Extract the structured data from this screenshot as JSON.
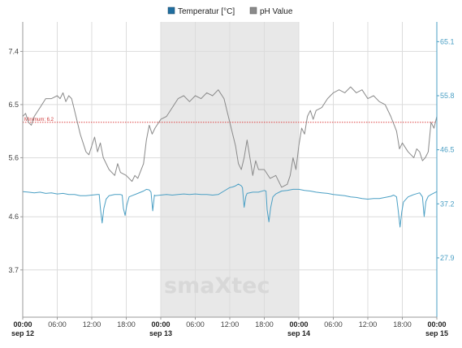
{
  "chart_data": {
    "type": "line",
    "legend": [
      {
        "name": "Temperatur [°C]",
        "color": "#1f6ea0"
      },
      {
        "name": "pH Value",
        "color": "#8a8a8a"
      }
    ],
    "legend_position": "top-center",
    "grid": true,
    "x_range": [
      "sep 12 00:00",
      "sep 15 00:00"
    ],
    "x_ticks": [
      "00:00",
      "06:00",
      "12:00",
      "18:00",
      "00:00",
      "06:00",
      "12:00",
      "18:00",
      "00:00",
      "06:00",
      "12:00",
      "18:00",
      "00:00"
    ],
    "x_day_labels": [
      {
        "hour": 0,
        "label": "sep 12"
      },
      {
        "hour": 24,
        "label": "sep 13"
      },
      {
        "hour": 48,
        "label": "sep 14"
      },
      {
        "hour": 72,
        "label": "sep 15"
      }
    ],
    "shaded_band": {
      "from_hour": 24,
      "to_hour": 48,
      "color": "#e8e8e8"
    },
    "y_left": {
      "ticks": [
        "7.4",
        "6.5",
        "5.6",
        "4.6",
        "3.7"
      ],
      "range": [
        2.9,
        7.9
      ]
    },
    "y_right": {
      "ticks": [
        "65.1",
        "55.8",
        "46.5",
        "37.2",
        "27.9"
      ],
      "range": [
        17.7,
        68.5
      ],
      "color": "#4a9fc4"
    },
    "threshold": {
      "label": "Minimum: 6.2",
      "value": 6.2,
      "color": "#cc3333"
    },
    "watermark": "smaXtec",
    "series": [
      {
        "name": "pH Value",
        "axis": "left",
        "color": "#8a8a8a",
        "points": [
          [
            0,
            6.3
          ],
          [
            0.5,
            6.35
          ],
          [
            1,
            6.2
          ],
          [
            1.5,
            6.15
          ],
          [
            2,
            6.3
          ],
          [
            3,
            6.45
          ],
          [
            4,
            6.6
          ],
          [
            5,
            6.6
          ],
          [
            6,
            6.65
          ],
          [
            6.5,
            6.6
          ],
          [
            7,
            6.7
          ],
          [
            7.5,
            6.55
          ],
          [
            8,
            6.65
          ],
          [
            8.5,
            6.6
          ],
          [
            9,
            6.4
          ],
          [
            10,
            6.0
          ],
          [
            11,
            5.7
          ],
          [
            11.5,
            5.65
          ],
          [
            12,
            5.8
          ],
          [
            12.5,
            5.95
          ],
          [
            13,
            5.7
          ],
          [
            13.5,
            5.85
          ],
          [
            14,
            5.6
          ],
          [
            15,
            5.4
          ],
          [
            16,
            5.3
          ],
          [
            16.5,
            5.5
          ],
          [
            17,
            5.35
          ],
          [
            18,
            5.3
          ],
          [
            19,
            5.2
          ],
          [
            19.5,
            5.3
          ],
          [
            20,
            5.25
          ],
          [
            21,
            5.5
          ],
          [
            21.5,
            5.9
          ],
          [
            22,
            6.15
          ],
          [
            22.5,
            6.0
          ],
          [
            23,
            6.1
          ],
          [
            24,
            6.25
          ],
          [
            25,
            6.3
          ],
          [
            26,
            6.45
          ],
          [
            27,
            6.6
          ],
          [
            28,
            6.65
          ],
          [
            29,
            6.55
          ],
          [
            30,
            6.65
          ],
          [
            31,
            6.6
          ],
          [
            32,
            6.7
          ],
          [
            33,
            6.65
          ],
          [
            34,
            6.75
          ],
          [
            35,
            6.6
          ],
          [
            36,
            6.2
          ],
          [
            37,
            5.8
          ],
          [
            37.5,
            5.5
          ],
          [
            38,
            5.4
          ],
          [
            38.5,
            5.6
          ],
          [
            39,
            5.9
          ],
          [
            39.5,
            5.6
          ],
          [
            40,
            5.3
          ],
          [
            40.5,
            5.55
          ],
          [
            41,
            5.4
          ],
          [
            42,
            5.4
          ],
          [
            43,
            5.25
          ],
          [
            44,
            5.3
          ],
          [
            45,
            5.1
          ],
          [
            46,
            5.15
          ],
          [
            46.5,
            5.3
          ],
          [
            47,
            5.6
          ],
          [
            47.5,
            5.4
          ],
          [
            48,
            5.8
          ],
          [
            48.5,
            6.1
          ],
          [
            49,
            6.0
          ],
          [
            49.5,
            6.3
          ],
          [
            50,
            6.4
          ],
          [
            50.5,
            6.25
          ],
          [
            51,
            6.4
          ],
          [
            52,
            6.45
          ],
          [
            53,
            6.6
          ],
          [
            54,
            6.7
          ],
          [
            55,
            6.75
          ],
          [
            56,
            6.7
          ],
          [
            57,
            6.8
          ],
          [
            58,
            6.7
          ],
          [
            59,
            6.75
          ],
          [
            60,
            6.6
          ],
          [
            61,
            6.65
          ],
          [
            62,
            6.55
          ],
          [
            63,
            6.5
          ],
          [
            64,
            6.3
          ],
          [
            65,
            6.05
          ],
          [
            65.5,
            5.75
          ],
          [
            66,
            5.85
          ],
          [
            67,
            5.7
          ],
          [
            68,
            5.6
          ],
          [
            68.5,
            5.75
          ],
          [
            69,
            5.7
          ],
          [
            69.5,
            5.55
          ],
          [
            70,
            5.6
          ],
          [
            70.5,
            5.7
          ],
          [
            71,
            6.2
          ],
          [
            71.5,
            6.1
          ],
          [
            72,
            6.3
          ]
        ]
      },
      {
        "name": "Temperatur [°C]",
        "axis": "right",
        "color": "#4a9fc4",
        "points": [
          [
            0,
            39.3
          ],
          [
            1,
            39.2
          ],
          [
            2,
            39.1
          ],
          [
            3,
            39.2
          ],
          [
            4,
            39.0
          ],
          [
            5,
            39.1
          ],
          [
            6,
            38.9
          ],
          [
            7,
            39.0
          ],
          [
            8,
            38.8
          ],
          [
            9,
            38.8
          ],
          [
            10,
            38.6
          ],
          [
            11,
            38.6
          ],
          [
            12,
            38.7
          ],
          [
            13,
            38.8
          ],
          [
            13.3,
            38.8
          ],
          [
            13.5,
            36.5
          ],
          [
            13.8,
            33.9
          ],
          [
            14.1,
            36.4
          ],
          [
            14.5,
            38.0
          ],
          [
            15,
            38.6
          ],
          [
            16,
            38.8
          ],
          [
            17,
            38.8
          ],
          [
            17.3,
            38.7
          ],
          [
            17.5,
            36.4
          ],
          [
            17.8,
            35.2
          ],
          [
            18.1,
            37.0
          ],
          [
            18.5,
            38.4
          ],
          [
            19,
            38.6
          ],
          [
            20,
            39.0
          ],
          [
            21,
            39.4
          ],
          [
            21.5,
            39.7
          ],
          [
            22,
            39.6
          ],
          [
            22.3,
            39.2
          ],
          [
            22.6,
            36.0
          ],
          [
            22.9,
            38.7
          ],
          [
            23,
            38.6
          ],
          [
            24,
            38.7
          ],
          [
            25,
            38.8
          ],
          [
            26,
            38.7
          ],
          [
            27,
            38.8
          ],
          [
            28,
            38.9
          ],
          [
            29,
            38.8
          ],
          [
            30,
            38.9
          ],
          [
            31,
            38.8
          ],
          [
            32,
            38.8
          ],
          [
            33,
            38.7
          ],
          [
            34,
            38.8
          ],
          [
            35,
            39.4
          ],
          [
            36,
            40.0
          ],
          [
            36.5,
            40.1
          ],
          [
            37,
            40.3
          ],
          [
            37.5,
            40.6
          ],
          [
            38,
            40.3
          ],
          [
            38.2,
            40.0
          ],
          [
            38.5,
            36.6
          ],
          [
            38.8,
            38.5
          ],
          [
            39,
            39.0
          ],
          [
            40,
            39.2
          ],
          [
            41,
            39.2
          ],
          [
            42,
            39.5
          ],
          [
            42.3,
            39.4
          ],
          [
            42.5,
            36.2
          ],
          [
            42.8,
            34.1
          ],
          [
            43.1,
            36.5
          ],
          [
            43.5,
            38.4
          ],
          [
            44,
            38.9
          ],
          [
            45,
            39.4
          ],
          [
            46,
            39.5
          ],
          [
            47,
            39.7
          ],
          [
            48,
            39.7
          ],
          [
            49,
            39.5
          ],
          [
            50,
            39.4
          ],
          [
            51,
            39.2
          ],
          [
            52,
            39.1
          ],
          [
            53,
            39.0
          ],
          [
            54,
            38.8
          ],
          [
            55,
            38.7
          ],
          [
            56,
            38.6
          ],
          [
            57,
            38.4
          ],
          [
            58,
            38.3
          ],
          [
            59,
            38.1
          ],
          [
            60,
            38.0
          ],
          [
            61,
            38.1
          ],
          [
            62,
            38.1
          ],
          [
            63,
            38.3
          ],
          [
            64,
            38.5
          ],
          [
            64.5,
            38.7
          ],
          [
            65,
            38.4
          ],
          [
            65.3,
            36.0
          ],
          [
            65.6,
            33.2
          ],
          [
            65.9,
            35.8
          ],
          [
            66.2,
            37.5
          ],
          [
            67,
            38.4
          ],
          [
            68,
            38.8
          ],
          [
            69,
            39.1
          ],
          [
            69.5,
            38.4
          ],
          [
            69.8,
            35.0
          ],
          [
            70.1,
            37.6
          ],
          [
            70.5,
            38.5
          ],
          [
            71,
            38.8
          ],
          [
            72,
            39.3
          ]
        ]
      }
    ]
  }
}
